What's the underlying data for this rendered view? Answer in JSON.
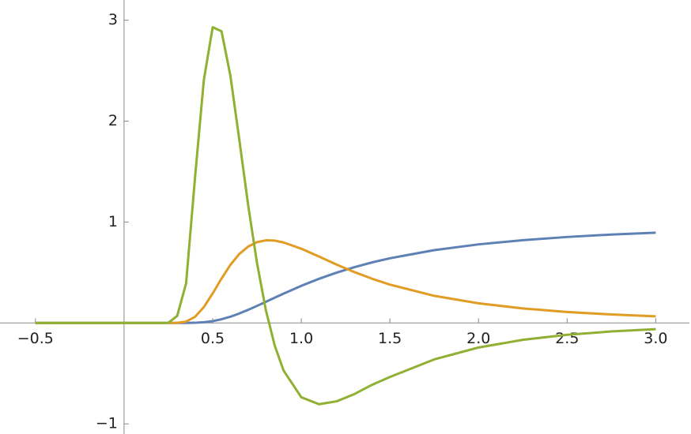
{
  "chart_data": {
    "type": "line",
    "x": [
      -0.5,
      0,
      0.2,
      0.25,
      0.3,
      0.35,
      0.4,
      0.45,
      0.5,
      0.55,
      0.6,
      0.65,
      0.7,
      0.75,
      0.8,
      0.85,
      0.9,
      1.0,
      1.1,
      1.2,
      1.3,
      1.4,
      1.5,
      1.75,
      2.0,
      2.25,
      2.5,
      2.75,
      3.0
    ],
    "series": [
      {
        "color": "#5e81b5",
        "values": [
          0,
          0,
          0,
          0,
          1e-05,
          0.0003,
          0.0019,
          0.0072,
          0.0183,
          0.0367,
          0.0622,
          0.0938,
          0.1299,
          0.169,
          0.2096,
          0.2505,
          0.291,
          0.3679,
          0.4376,
          0.4994,
          0.5534,
          0.6004,
          0.6412,
          0.7214,
          0.7788,
          0.8208,
          0.8521,
          0.8761,
          0.8948
        ]
      },
      {
        "color": "#e19c24",
        "values": [
          0,
          0,
          0,
          1e-05,
          0.0011,
          0.0133,
          0.0603,
          0.157,
          0.293,
          0.441,
          0.576,
          0.683,
          0.757,
          0.801,
          0.819,
          0.816,
          0.798,
          0.736,
          0.658,
          0.578,
          0.504,
          0.438,
          0.38,
          0.269,
          0.195,
          0.144,
          0.109,
          0.0843,
          0.0663
        ]
      },
      {
        "color": "#8fb032",
        "values": [
          0,
          0,
          0,
          0.0017,
          0.0707,
          0.392,
          1.432,
          2.405,
          2.93,
          2.89,
          2.45,
          1.82,
          1.17,
          0.595,
          0.128,
          -0.223,
          -0.471,
          -0.736,
          -0.805,
          -0.776,
          -0.704,
          -0.612,
          -0.535,
          -0.361,
          -0.243,
          -0.167,
          -0.117,
          -0.084,
          -0.0614
        ]
      }
    ],
    "xlim": [
      -0.7,
      3.19
    ],
    "ylim": [
      -1.1,
      3.2
    ],
    "xticks": [
      {
        "value": -0.5,
        "label": "−0.5"
      },
      0.5,
      {
        "value": 1.0,
        "label": "1.0"
      },
      1.5,
      {
        "value": 2.0,
        "label": "2.0"
      },
      2.5,
      {
        "value": 3.0,
        "label": "3.0"
      }
    ],
    "yticks": [
      {
        "value": -1,
        "label": "−1"
      },
      1,
      2,
      3
    ]
  }
}
